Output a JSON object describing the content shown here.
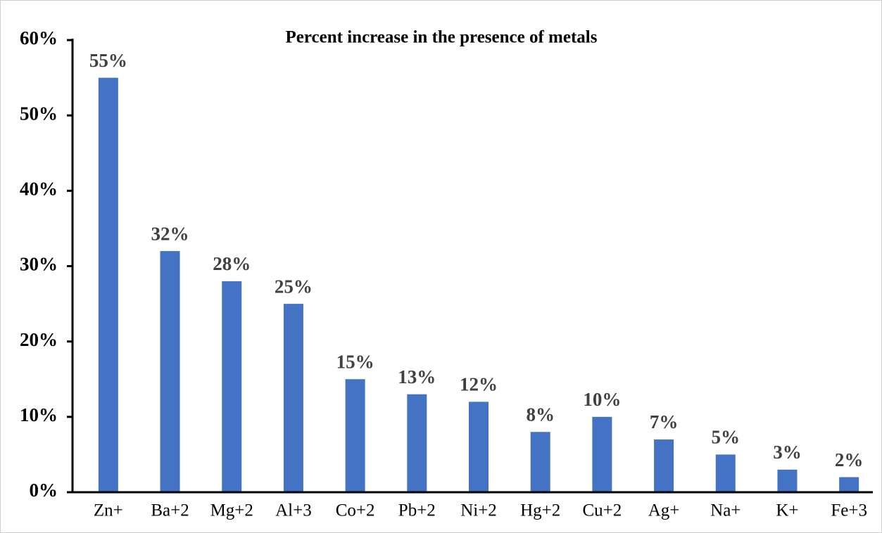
{
  "chart_data": {
    "type": "bar",
    "title": "Percent increase in the presence of metals",
    "categories": [
      "Zn+",
      "Ba+2",
      "Mg+2",
      "Al+3",
      "Co+2",
      "Pb+2",
      "Ni+2",
      "Hg+2",
      "Cu+2",
      "Ag+",
      "Na+",
      "K+",
      "Fe+3"
    ],
    "values": [
      55,
      32,
      28,
      25,
      15,
      13,
      12,
      8,
      10,
      7,
      5,
      3,
      2
    ],
    "value_labels": [
      "55%",
      "32%",
      "28%",
      "25%",
      "15%",
      "13%",
      "12%",
      "8%",
      "10%",
      "7%",
      "5%",
      "3%",
      "2%"
    ],
    "color": "#4472c4",
    "ylim": [
      0,
      60
    ],
    "yticks": [
      {
        "value": 0,
        "label": "0%"
      },
      {
        "value": 10,
        "label": "10%"
      },
      {
        "value": 20,
        "label": "20%"
      },
      {
        "value": 30,
        "label": "30%"
      },
      {
        "value": 40,
        "label": "40%"
      },
      {
        "value": 50,
        "label": "50%"
      },
      {
        "value": 60,
        "label": "60%"
      }
    ],
    "grid": false
  }
}
